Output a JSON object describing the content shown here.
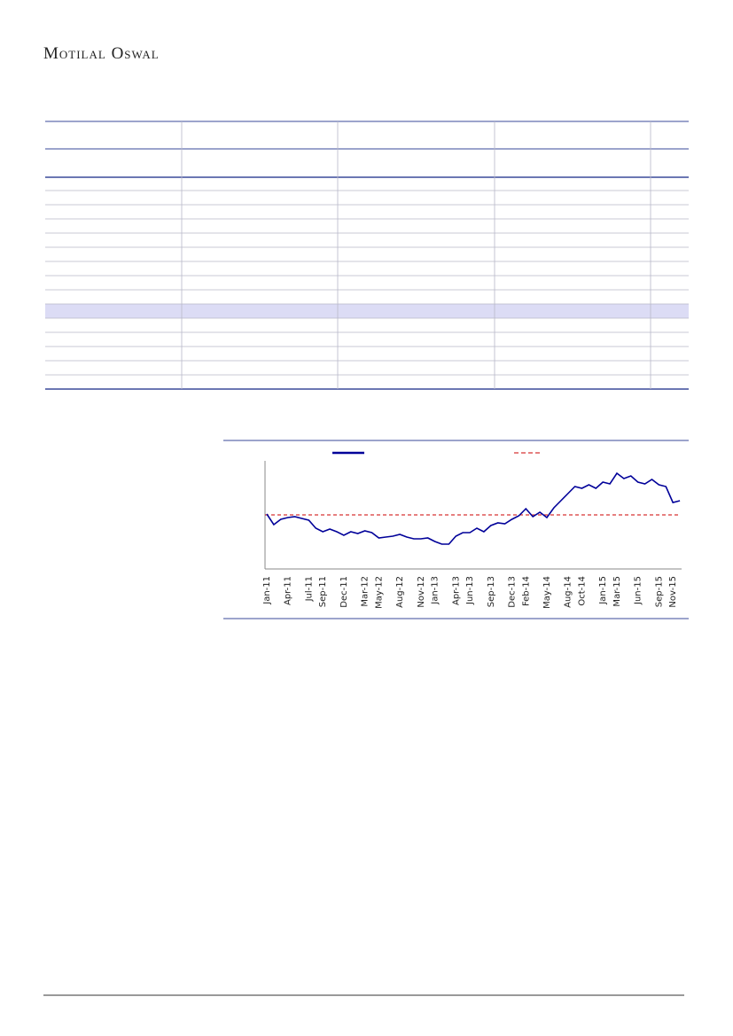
{
  "header": {
    "brand": "Motilal Oswal"
  },
  "chart_data": {
    "type": "line",
    "categories": [
      "Jan-11",
      null,
      null,
      "Apr-11",
      null,
      null,
      "Jul-11",
      null,
      "Sep-11",
      null,
      null,
      "Dec-11",
      null,
      null,
      "Mar-12",
      null,
      "May-12",
      null,
      null,
      "Aug-12",
      null,
      null,
      "Nov-12",
      null,
      "Jan-13",
      null,
      null,
      "Apr-13",
      null,
      "Jun-13",
      null,
      null,
      "Sep-13",
      null,
      null,
      "Dec-13",
      null,
      "Feb-14",
      null,
      null,
      "May-14",
      null,
      null,
      "Aug-14",
      null,
      "Oct-14",
      null,
      null,
      "Jan-15",
      null,
      "Mar-15",
      null,
      null,
      "Jun-15",
      null,
      null,
      "Sep-15",
      null,
      "Nov-15",
      null
    ],
    "series": [
      {
        "color": "#000099",
        "values": [
          62,
          50,
          56,
          58,
          59,
          57,
          55,
          46,
          42,
          45,
          42,
          38,
          42,
          40,
          43,
          41,
          35,
          36,
          37,
          39,
          36,
          34,
          34,
          35,
          31,
          28,
          28,
          37,
          41,
          41,
          46,
          42,
          49,
          52,
          51,
          56,
          60,
          68,
          59,
          64,
          58,
          69,
          77,
          85,
          93,
          91,
          95,
          91,
          98,
          96,
          108,
          102,
          105,
          98,
          96,
          101,
          95,
          93,
          75,
          77
        ]
      }
    ],
    "mean_line": {
      "value": 61,
      "color": "#cc0000",
      "dashed": true
    },
    "ylim": [
      0,
      120
    ]
  }
}
